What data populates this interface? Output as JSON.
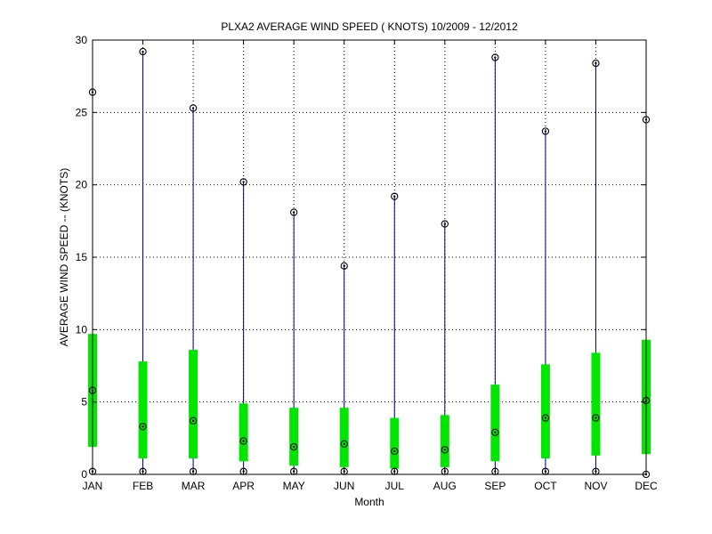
{
  "chart_data": {
    "type": "box",
    "title": "PLXA2  AVERAGE WIND SPEED ( KNOTS) 10/2009 - 12/2012",
    "xlabel": "Month",
    "ylabel": "AVERAGE WIND SPEED -- (KNOTS)",
    "ylim": [
      0,
      30
    ],
    "yticks": [
      0,
      5,
      10,
      15,
      20,
      25,
      30
    ],
    "grid": true,
    "categories": [
      "JAN",
      "FEB",
      "MAR",
      "APR",
      "MAY",
      "JUN",
      "JUL",
      "AUG",
      "SEP",
      "OCT",
      "NOV",
      "DEC"
    ],
    "min": [
      0.2,
      0.2,
      0.2,
      0.2,
      0.2,
      0.2,
      0.2,
      0.2,
      0.2,
      0.2,
      0.2,
      0.0
    ],
    "q1": [
      1.9,
      1.1,
      1.1,
      0.9,
      0.6,
      0.5,
      0.4,
      0.5,
      0.9,
      1.1,
      1.3,
      1.4
    ],
    "median": [
      5.8,
      3.3,
      3.7,
      2.3,
      1.9,
      2.1,
      1.6,
      1.7,
      2.9,
      3.9,
      3.9,
      5.1
    ],
    "q3": [
      9.7,
      7.8,
      8.6,
      4.9,
      4.6,
      4.6,
      3.9,
      4.1,
      6.2,
      7.6,
      8.4,
      9.3
    ],
    "max": [
      26.4,
      29.2,
      25.3,
      20.2,
      18.1,
      14.4,
      19.2,
      17.3,
      28.8,
      23.7,
      28.4,
      24.5
    ],
    "colors": {
      "whisker": "#00007f",
      "box": "#00e600",
      "marker": "#000000",
      "grid": "#000000",
      "axes": "#000000"
    }
  }
}
